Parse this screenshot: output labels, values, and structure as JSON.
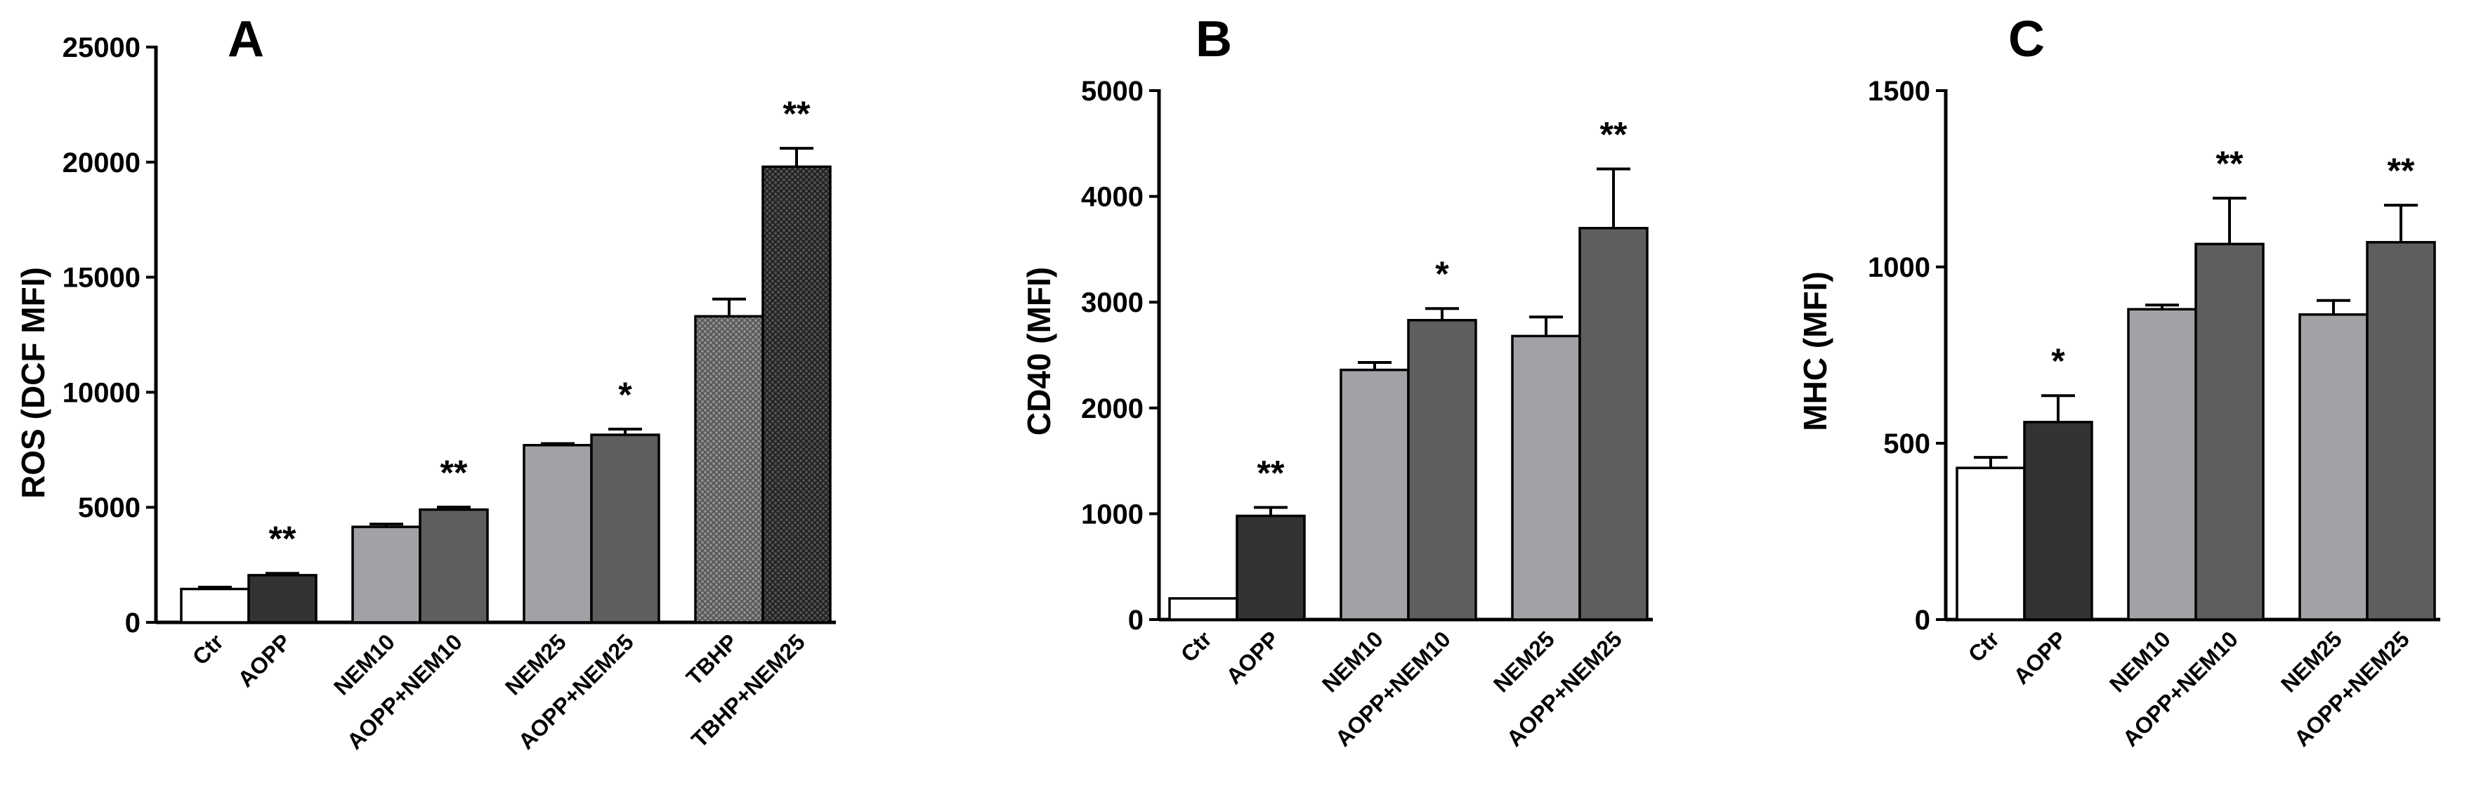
{
  "chart_data": [
    {
      "type": "bar",
      "panel": "A",
      "ylabel": "ROS (DCF MFI)",
      "ylim": [
        0,
        25000
      ],
      "yticks": [
        0,
        5000,
        10000,
        15000,
        20000,
        25000
      ],
      "categories": [
        "Ctr",
        "AOPP",
        "NEM10",
        "AOPP+NEM10",
        "NEM25",
        "AOPP+NEM25",
        "TBHP",
        "TBHP+NEM25"
      ],
      "groups": [
        [
          0,
          1
        ],
        [
          2,
          3
        ],
        [
          4,
          5
        ],
        [
          6,
          7
        ]
      ],
      "values": [
        1450,
        2050,
        4150,
        4900,
        7700,
        8150,
        13300,
        19800
      ],
      "errors": [
        80,
        80,
        120,
        110,
        70,
        250,
        750,
        800
      ],
      "fills": [
        "white",
        "dark",
        "light",
        "mid",
        "light",
        "mid",
        "hatch-light",
        "hatch-dark"
      ],
      "significance": [
        "",
        "**",
        "",
        "**",
        "",
        "*",
        "",
        "**"
      ]
    },
    {
      "type": "bar",
      "panel": "B",
      "ylabel": "CD40 (MFI)",
      "ylim": [
        0,
        5000
      ],
      "yticks": [
        0,
        1000,
        2000,
        3000,
        4000,
        5000
      ],
      "categories": [
        "Ctr",
        "AOPP",
        "NEM10",
        "AOPP+NEM10",
        "NEM25",
        "AOPP+NEM25"
      ],
      "groups": [
        [
          0,
          1
        ],
        [
          2,
          3
        ],
        [
          4,
          5
        ]
      ],
      "values": [
        200,
        980,
        2360,
        2830,
        2680,
        3700
      ],
      "errors": [
        0,
        80,
        70,
        110,
        180,
        560
      ],
      "fills": [
        "white",
        "dark",
        "light",
        "mid",
        "light",
        "mid"
      ],
      "significance": [
        "",
        "**",
        "",
        "*",
        "",
        "**"
      ]
    },
    {
      "type": "bar",
      "panel": "C",
      "ylabel": "MHC (MFI)",
      "ylim": [
        0,
        1500
      ],
      "yticks": [
        0,
        500,
        1000,
        1500
      ],
      "categories": [
        "Ctr",
        "AOPP",
        "NEM10",
        "AOPP+NEM10",
        "NEM25",
        "AOPP+NEM25"
      ],
      "groups": [
        [
          0,
          1
        ],
        [
          2,
          3
        ],
        [
          4,
          5
        ]
      ],
      "values": [
        430,
        560,
        880,
        1065,
        865,
        1070
      ],
      "errors": [
        30,
        75,
        12,
        130,
        40,
        105
      ],
      "fills": [
        "white",
        "dark",
        "light",
        "mid",
        "light",
        "mid"
      ],
      "significance": [
        "",
        "*",
        "",
        "**",
        "",
        "**"
      ]
    }
  ],
  "colors": {
    "white": "#ffffff",
    "dark": "#333333",
    "light": "#a2a2a6",
    "mid": "#5e5e5e",
    "stroke": "#000000"
  }
}
